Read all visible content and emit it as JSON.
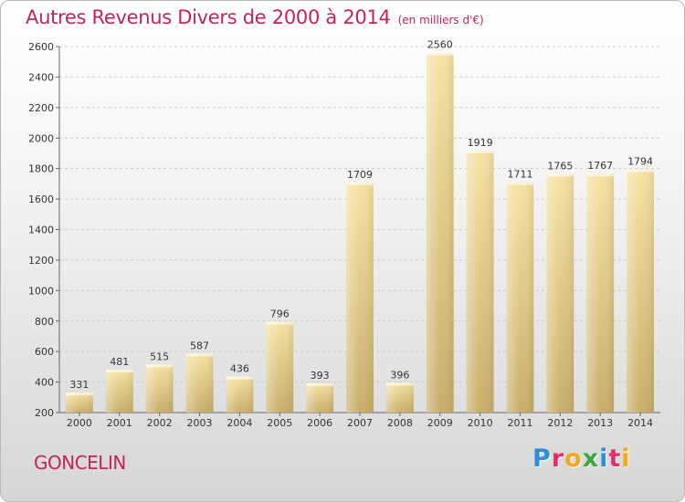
{
  "chart_data": {
    "type": "bar",
    "title": "Autres Revenus Divers de 2000 à 2014",
    "unit_label": "(en milliers d'€)",
    "categories": [
      "2000",
      "2001",
      "2002",
      "2003",
      "2004",
      "2005",
      "2006",
      "2007",
      "2008",
      "2009",
      "2010",
      "2011",
      "2012",
      "2013",
      "2014"
    ],
    "values": [
      331,
      481,
      515,
      587,
      436,
      796,
      393,
      1709,
      396,
      2560,
      1919,
      1711,
      1765,
      1767,
      1794
    ],
    "ylim": [
      200,
      2600
    ],
    "yticks": [
      200,
      400,
      600,
      800,
      1000,
      1200,
      1400,
      1600,
      1800,
      2000,
      2200,
      2400,
      2600
    ],
    "grid": true,
    "colors": {
      "bar_light": "#f6e2a2",
      "bar_dark": "#c9ae6a",
      "title": "#c0245e"
    }
  },
  "footer": {
    "commune": "GONCELIN",
    "logo_letters": [
      {
        "char": "P",
        "color": "#2e8fd4"
      },
      {
        "char": "r",
        "color": "#e0306a"
      },
      {
        "char": "o",
        "color": "#f0a81c"
      },
      {
        "char": "x",
        "color": "#3aa83a"
      },
      {
        "char": "i",
        "color": "#2e8fd4"
      },
      {
        "char": "t",
        "color": "#e0306a"
      },
      {
        "char": "i",
        "color": "#f0a81c"
      }
    ]
  }
}
